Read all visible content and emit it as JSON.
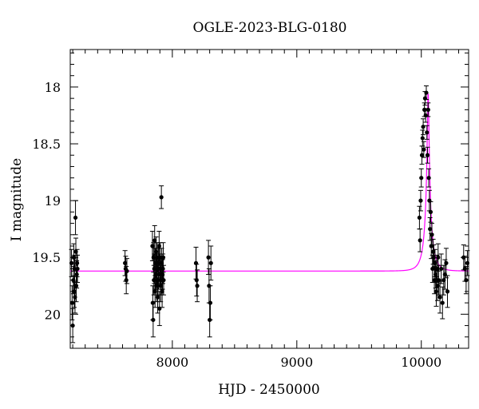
{
  "chart_data": {
    "type": "scatter",
    "title": "OGLE-2023-BLG-0180",
    "xlabel": "HJD - 2450000",
    "ylabel": "I magnitude",
    "xlim": [
      7180,
      10380
    ],
    "ylim": [
      20.3,
      17.67
    ],
    "y_inverted": true,
    "x_ticks": [
      8000,
      9000,
      10000
    ],
    "x_tick_labels": [
      "8000",
      "9000",
      "10000"
    ],
    "y_ticks": [
      18,
      18.5,
      19,
      19.5,
      20
    ],
    "y_tick_labels": [
      "18",
      "18.5",
      "19",
      "19.5",
      "20"
    ],
    "grid": false,
    "legend": "none",
    "colors": {
      "data": "#000000",
      "model": "#ff00ff"
    },
    "model": {
      "name": "",
      "t0": 10055,
      "u0": 0.1,
      "tE": 60,
      "baseline_mag": 19.62,
      "peak_mag": 18.05
    },
    "series": [
      {
        "marker": "filled-circle",
        "x": [
          7190,
          7195,
          7200,
          7205,
          7208,
          7212,
          7215,
          7218,
          7222,
          7225,
          7228,
          7232,
          7235,
          7238,
          7620,
          7625,
          7630,
          7635,
          7840,
          7843,
          7846,
          7849,
          7852,
          7855,
          7858,
          7861,
          7864,
          7867,
          7870,
          7873,
          7876,
          7879,
          7882,
          7885,
          7888,
          7891,
          7894,
          7897,
          7900,
          7903,
          7906,
          7909,
          7912,
          7915,
          7918,
          7921,
          7924,
          7927,
          7930,
          8190,
          8195,
          8200,
          8290,
          8295,
          8300,
          8305,
          8310,
          9985,
          9990,
          9995,
          10000,
          10005,
          10010,
          10015,
          10020,
          10025,
          10030,
          10035,
          10040,
          10045,
          10050,
          10055,
          10060,
          10065,
          10070,
          10075,
          10080,
          10085,
          10090,
          10095,
          10100,
          10105,
          10110,
          10115,
          10120,
          10125,
          10130,
          10135,
          10140,
          10150,
          10160,
          10170,
          10180,
          10190,
          10200,
          10210,
          10340,
          10350,
          10360,
          10370
        ],
        "y": [
          19.55,
          19.9,
          20.1,
          19.7,
          19.5,
          19.8,
          19.6,
          19.85,
          19.15,
          19.45,
          19.75,
          19.65,
          19.55,
          19.6,
          19.55,
          19.6,
          19.7,
          19.62,
          19.4,
          19.9,
          20.05,
          19.5,
          19.7,
          19.6,
          19.35,
          19.8,
          19.55,
          19.65,
          19.45,
          19.75,
          19.6,
          19.5,
          19.85,
          19.7,
          19.55,
          19.65,
          19.4,
          19.95,
          19.6,
          19.5,
          19.75,
          19.7,
          18.97,
          19.55,
          19.8,
          19.65,
          19.6,
          19.5,
          19.7,
          19.55,
          19.7,
          19.75,
          19.5,
          19.75,
          20.05,
          19.9,
          19.55,
          19.15,
          19.35,
          19.0,
          18.8,
          18.6,
          18.45,
          18.35,
          18.55,
          18.2,
          18.1,
          18.25,
          18.05,
          18.4,
          18.6,
          18.2,
          18.8,
          19.0,
          19.25,
          19.1,
          19.4,
          19.3,
          19.6,
          19.45,
          19.5,
          19.7,
          19.55,
          19.65,
          19.8,
          19.6,
          19.75,
          19.5,
          19.7,
          19.85,
          19.6,
          19.9,
          19.7,
          19.65,
          19.55,
          19.8,
          19.5,
          19.6,
          19.7,
          19.55
        ],
        "yerr": [
          0.12,
          0.15,
          0.15,
          0.12,
          0.12,
          0.14,
          0.12,
          0.14,
          0.15,
          0.12,
          0.14,
          0.12,
          0.12,
          0.12,
          0.11,
          0.11,
          0.12,
          0.11,
          0.13,
          0.15,
          0.15,
          0.13,
          0.13,
          0.13,
          0.13,
          0.14,
          0.13,
          0.13,
          0.13,
          0.14,
          0.13,
          0.13,
          0.14,
          0.13,
          0.13,
          0.13,
          0.13,
          0.15,
          0.13,
          0.13,
          0.14,
          0.13,
          0.1,
          0.13,
          0.14,
          0.13,
          0.13,
          0.13,
          0.13,
          0.14,
          0.14,
          0.14,
          0.15,
          0.15,
          0.15,
          0.15,
          0.15,
          0.1,
          0.1,
          0.09,
          0.08,
          0.08,
          0.07,
          0.07,
          0.07,
          0.06,
          0.06,
          0.06,
          0.06,
          0.06,
          0.07,
          0.06,
          0.08,
          0.09,
          0.1,
          0.09,
          0.11,
          0.1,
          0.12,
          0.11,
          0.11,
          0.12,
          0.12,
          0.12,
          0.13,
          0.12,
          0.13,
          0.12,
          0.13,
          0.14,
          0.13,
          0.14,
          0.13,
          0.13,
          0.13,
          0.14,
          0.11,
          0.11,
          0.12,
          0.11
        ]
      }
    ]
  }
}
